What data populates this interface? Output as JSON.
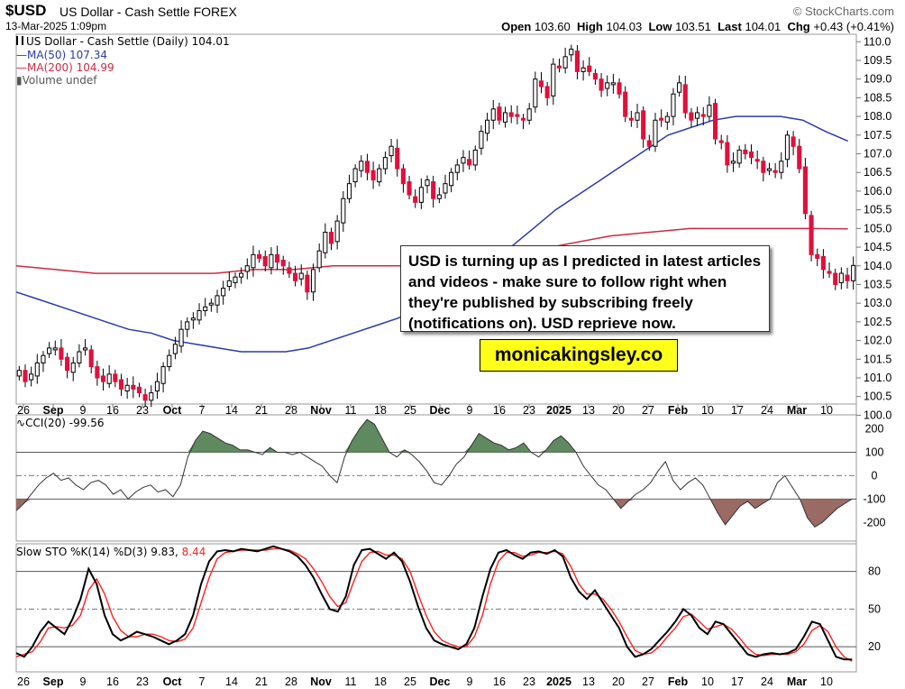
{
  "header": {
    "symbol": "$USD",
    "name": "US Dollar - Cash Settle FOREX",
    "date": "13-Mar-2025 1:09pm",
    "credit": "© StockCharts.com",
    "open_label": "Open",
    "open": "103.60",
    "high_label": "High",
    "high": "104.03",
    "low_label": "Low",
    "low": "103.51",
    "last_label": "Last",
    "last": "104.01",
    "chg_label": "Chg",
    "chg": "+0.43 (+0.41%)"
  },
  "legend": {
    "main": "US Dollar - Cash Settle (Daily) 104.01",
    "ma50": "MA(50) 107.34",
    "ma200": "MA(200) 104.99",
    "volume": "Volume undef",
    "cci": "CCI(20) -99.56",
    "sto_prefix": "Slow STO %K(14) %D(3) 9.83,",
    "sto_d": "8.44"
  },
  "annotation": {
    "note": "USD is turning up as I predicted in latest articles and videos - make sure to follow right when they're published by subscribing freely (notifications on). USD reprieve now.",
    "brand": "monicakingsley.co"
  },
  "colors": {
    "up": "#ffffff",
    "down": "#e0103c",
    "ma50": "#2b3aa8",
    "ma200": "#cc2a44",
    "cci_pos": "#5f8a5f",
    "cci_neg": "#9a6a64",
    "sto_k": "#000000",
    "sto_d": "#ff2020"
  },
  "chart_data": [
    {
      "type": "candlestick",
      "title": "US Dollar - Cash Settle (Daily) 104.01",
      "ylim": [
        100.3,
        110.2
      ],
      "y_ticks": [
        "110.0",
        "109.5",
        "109.0",
        "108.5",
        "108.0",
        "107.5",
        "107.0",
        "106.5",
        "106.0",
        "105.5",
        "105.0",
        "104.5",
        "104.0",
        "103.5",
        "103.0",
        "102.5",
        "102.0",
        "101.5",
        "101.0",
        "100.5",
        "100.0"
      ],
      "x_tick_labels": [
        "26",
        "Sep",
        "9",
        "16",
        "23",
        "Oct",
        "7",
        "14",
        "21",
        "28",
        "Nov",
        "11",
        "18",
        "25",
        "Dec",
        "9",
        "16",
        "23",
        "2025",
        "13",
        "20",
        "27",
        "Feb",
        "10",
        "17",
        "24",
        "Mar",
        "10"
      ],
      "close": [
        101.2,
        100.9,
        101.1,
        101.4,
        101.6,
        101.8,
        101.8,
        101.5,
        101.2,
        101.4,
        101.7,
        101.8,
        101.3,
        101.0,
        100.9,
        101.1,
        100.9,
        100.7,
        100.8,
        100.7,
        100.6,
        100.4,
        100.6,
        100.9,
        101.3,
        101.6,
        101.9,
        102.3,
        102.5,
        102.6,
        102.8,
        102.9,
        103.0,
        103.2,
        103.4,
        103.6,
        103.7,
        103.8,
        104.0,
        104.3,
        104.2,
        104.0,
        104.3,
        104.1,
        104.0,
        103.8,
        103.6,
        103.8,
        103.3,
        103.9,
        104.4,
        104.9,
        104.6,
        105.2,
        105.8,
        106.2,
        106.6,
        106.8,
        106.5,
        106.3,
        106.6,
        106.9,
        107.2,
        106.6,
        106.2,
        105.9,
        105.7,
        106.1,
        106.3,
        105.8,
        105.9,
        106.2,
        106.5,
        106.7,
        106.9,
        106.7,
        107.1,
        107.6,
        107.9,
        108.2,
        107.9,
        108.1,
        108.0,
        108.0,
        107.9,
        108.2,
        109.0,
        108.8,
        108.5,
        109.4,
        109.3,
        109.6,
        109.8,
        109.2,
        109.3,
        109.2,
        109.0,
        108.7,
        108.9,
        108.9,
        108.6,
        108.0,
        107.9,
        108.1,
        107.4,
        107.2,
        107.9,
        107.9,
        108.0,
        108.6,
        108.9,
        108.1,
        107.9,
        108.1,
        108.0,
        108.3,
        107.4,
        107.3,
        106.7,
        106.8,
        107.1,
        107.0,
        106.9,
        106.8,
        106.5,
        106.6,
        106.5,
        106.8,
        107.5,
        107.2,
        106.6,
        105.4,
        104.3,
        104.2,
        103.9,
        103.8,
        103.5,
        103.8,
        103.6,
        104.01
      ],
      "ma50": [
        103.3,
        103.1,
        102.9,
        102.7,
        102.5,
        102.3,
        102.2,
        102.0,
        101.9,
        101.8,
        101.7,
        101.7,
        101.7,
        101.8,
        102.0,
        102.2,
        102.4,
        102.6,
        102.9,
        103.2,
        103.6,
        104.0,
        104.5,
        105.0,
        105.5,
        105.9,
        106.3,
        106.7,
        107.1,
        107.5,
        107.7,
        107.9,
        108.0,
        108.0,
        108.0,
        107.9,
        107.6,
        107.34
      ],
      "ma200": [
        104.0,
        103.9,
        103.8,
        103.8,
        103.8,
        103.8,
        103.9,
        103.9,
        104.0,
        104.0,
        104.0,
        104.1,
        104.2,
        104.4,
        104.6,
        104.8,
        104.9,
        105.0,
        105.0,
        105.0,
        105.0,
        104.99
      ],
      "ma50_label": "MA(50) 107.34",
      "ma200_label": "MA(200) 104.99"
    },
    {
      "type": "line",
      "title": "CCI(20) -99.56",
      "ylim": [
        -280,
        260
      ],
      "y_ticks": [
        "200",
        "100",
        "0",
        "-100",
        "-200"
      ],
      "values": [
        -150,
        -120,
        -80,
        -40,
        -10,
        10,
        -20,
        -10,
        -40,
        -60,
        -30,
        -20,
        -40,
        -80,
        -60,
        -100,
        -70,
        -50,
        -40,
        -70,
        -60,
        -90,
        -40,
        80,
        150,
        190,
        180,
        160,
        140,
        130,
        110,
        110,
        100,
        90,
        120,
        100,
        100,
        90,
        100,
        80,
        60,
        40,
        0,
        -30,
        80,
        150,
        200,
        240,
        220,
        160,
        100,
        80,
        110,
        90,
        60,
        20,
        -30,
        -40,
        0,
        50,
        80,
        130,
        180,
        160,
        140,
        130,
        110,
        120,
        140,
        100,
        80,
        110,
        150,
        170,
        140,
        100,
        40,
        0,
        -40,
        -60,
        -100,
        -140,
        -110,
        -80,
        -60,
        -30,
        20,
        60,
        -20,
        -60,
        -30,
        -10,
        -40,
        -100,
        -160,
        -210,
        -170,
        -130,
        -110,
        -140,
        -120,
        -100,
        -30,
        0,
        -50,
        -100,
        -180,
        -220,
        -200,
        -170,
        -140,
        -120,
        -99.56
      ]
    },
    {
      "type": "line",
      "title": "Slow STO %K(14) %D(3) 9.83, 8.44",
      "ylim": [
        0,
        102
      ],
      "y_ticks": [
        "80",
        "50",
        "20"
      ],
      "series": [
        {
          "name": "%K(14)",
          "values": [
            15,
            12,
            20,
            32,
            40,
            35,
            30,
            42,
            58,
            82,
            70,
            45,
            30,
            25,
            28,
            32,
            30,
            28,
            25,
            22,
            25,
            30,
            45,
            70,
            88,
            96,
            97,
            96,
            98,
            97,
            96,
            98,
            100,
            98,
            96,
            92,
            85,
            75,
            62,
            50,
            48,
            60,
            85,
            97,
            98,
            94,
            90,
            95,
            88,
            72,
            52,
            35,
            25,
            22,
            20,
            18,
            22,
            35,
            60,
            82,
            95,
            97,
            93,
            90,
            95,
            96,
            94,
            97,
            92,
            75,
            64,
            58,
            65,
            55,
            45,
            35,
            20,
            12,
            14,
            18,
            25,
            32,
            40,
            50,
            45,
            35,
            30,
            40,
            38,
            30,
            22,
            14,
            12,
            14,
            15,
            14,
            15,
            18,
            28,
            40,
            38,
            25,
            12,
            10,
            9.83
          ]
        },
        {
          "name": "%D(3)",
          "values": [
            12,
            14,
            16,
            24,
            35,
            36,
            35,
            37,
            45,
            65,
            74,
            62,
            44,
            33,
            28,
            28,
            30,
            30,
            28,
            25,
            24,
            26,
            35,
            55,
            75,
            90,
            95,
            96,
            97,
            97,
            97,
            97,
            98,
            98,
            97,
            94,
            90,
            82,
            72,
            60,
            52,
            55,
            72,
            88,
            95,
            96,
            93,
            93,
            90,
            80,
            62,
            45,
            32,
            25,
            22,
            20,
            20,
            28,
            45,
            70,
            88,
            95,
            95,
            92,
            93,
            95,
            95,
            96,
            94,
            84,
            70,
            62,
            62,
            58,
            50,
            40,
            28,
            17,
            14,
            15,
            20,
            28,
            35,
            44,
            46,
            40,
            34,
            36,
            38,
            34,
            27,
            19,
            14,
            13,
            14,
            14,
            14,
            16,
            22,
            33,
            37,
            32,
            20,
            12,
            8.44
          ]
        }
      ]
    }
  ]
}
